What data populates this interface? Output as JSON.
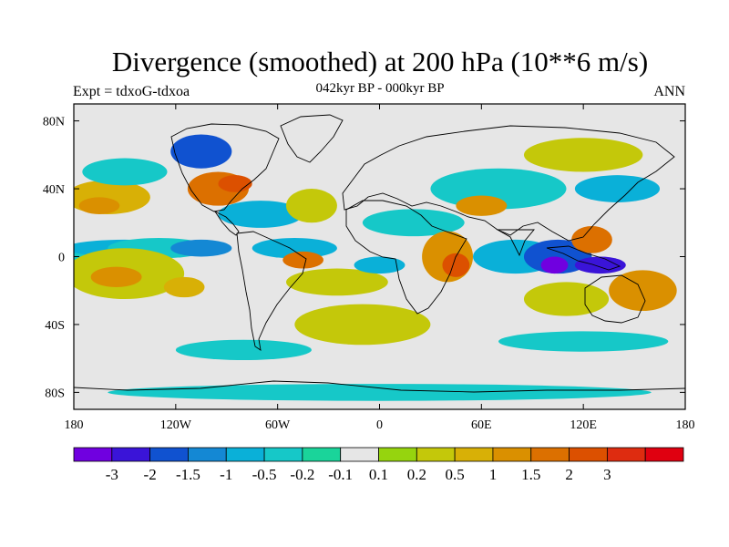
{
  "title": "Divergence (smoothed) at 200 hPa (10**6 m/s)",
  "subtitle": "042kyr BP - 000kyr BP",
  "left_label": "Expt = tdxoG-tdxoa",
  "right_label": "ANN",
  "map": {
    "projection": "cylindrical-equidistant",
    "lon_range": [
      -180,
      180
    ],
    "lat_range": [
      -90,
      90
    ],
    "background_color": "#e6e6e6",
    "x_ticks": [
      {
        "value": -180,
        "label": "180"
      },
      {
        "value": -120,
        "label": "120W"
      },
      {
        "value": -60,
        "label": "60W"
      },
      {
        "value": 0,
        "label": "0"
      },
      {
        "value": 60,
        "label": "60E"
      },
      {
        "value": 120,
        "label": "120E"
      },
      {
        "value": 180,
        "label": "180"
      }
    ],
    "y_ticks": [
      {
        "value": 80,
        "label": "80N"
      },
      {
        "value": 40,
        "label": "40N"
      },
      {
        "value": 0,
        "label": "0"
      },
      {
        "value": -40,
        "label": "40S"
      },
      {
        "value": -80,
        "label": "80S"
      }
    ],
    "fields": [
      {
        "lon": -170,
        "lat": 0,
        "rx": 25,
        "ry": 7,
        "level": 5
      },
      {
        "lon": -150,
        "lat": 5,
        "rx": 35,
        "ry": 5,
        "level": 4
      },
      {
        "lon": -130,
        "lat": 5,
        "rx": 30,
        "ry": 6,
        "level": 5
      },
      {
        "lon": -105,
        "lat": 5,
        "rx": 18,
        "ry": 5,
        "level": 3
      },
      {
        "lon": -150,
        "lat": -10,
        "rx": 35,
        "ry": 15,
        "level": 9
      },
      {
        "lon": -155,
        "lat": -12,
        "rx": 15,
        "ry": 6,
        "level": 11
      },
      {
        "lon": -115,
        "lat": -18,
        "rx": 12,
        "ry": 6,
        "level": 10
      },
      {
        "lon": -160,
        "lat": 35,
        "rx": 25,
        "ry": 10,
        "level": 10
      },
      {
        "lon": -165,
        "lat": 30,
        "rx": 12,
        "ry": 5,
        "level": 11
      },
      {
        "lon": -150,
        "lat": 50,
        "rx": 25,
        "ry": 8,
        "level": 5
      },
      {
        "lon": -105,
        "lat": 62,
        "rx": 18,
        "ry": 10,
        "level": 2
      },
      {
        "lon": -95,
        "lat": 40,
        "rx": 18,
        "ry": 10,
        "level": 12
      },
      {
        "lon": -85,
        "lat": 43,
        "rx": 10,
        "ry": 5,
        "level": 13
      },
      {
        "lon": -70,
        "lat": 25,
        "rx": 25,
        "ry": 8,
        "level": 4
      },
      {
        "lon": -40,
        "lat": 30,
        "rx": 15,
        "ry": 10,
        "level": 9
      },
      {
        "lon": -50,
        "lat": 5,
        "rx": 25,
        "ry": 6,
        "level": 4
      },
      {
        "lon": -45,
        "lat": -2,
        "rx": 12,
        "ry": 5,
        "level": 12
      },
      {
        "lon": -25,
        "lat": -15,
        "rx": 30,
        "ry": 8,
        "level": 9
      },
      {
        "lon": 0,
        "lat": -5,
        "rx": 15,
        "ry": 5,
        "level": 4
      },
      {
        "lon": -10,
        "lat": -40,
        "rx": 40,
        "ry": 12,
        "level": 9
      },
      {
        "lon": 20,
        "lat": 20,
        "rx": 30,
        "ry": 8,
        "level": 5
      },
      {
        "lon": 40,
        "lat": 0,
        "rx": 15,
        "ry": 15,
        "level": 11
      },
      {
        "lon": 45,
        "lat": -5,
        "rx": 8,
        "ry": 7,
        "level": 13
      },
      {
        "lon": 70,
        "lat": 40,
        "rx": 40,
        "ry": 12,
        "level": 5
      },
      {
        "lon": 60,
        "lat": 30,
        "rx": 15,
        "ry": 6,
        "level": 11
      },
      {
        "lon": 80,
        "lat": 0,
        "rx": 25,
        "ry": 10,
        "level": 4
      },
      {
        "lon": 105,
        "lat": 0,
        "rx": 20,
        "ry": 10,
        "level": 2
      },
      {
        "lon": 103,
        "lat": -5,
        "rx": 8,
        "ry": 5,
        "level": 0
      },
      {
        "lon": 130,
        "lat": -5,
        "rx": 15,
        "ry": 5,
        "level": 1
      },
      {
        "lon": 125,
        "lat": 10,
        "rx": 12,
        "ry": 8,
        "level": 12
      },
      {
        "lon": 155,
        "lat": -20,
        "rx": 20,
        "ry": 12,
        "level": 11
      },
      {
        "lon": 110,
        "lat": -25,
        "rx": 25,
        "ry": 10,
        "level": 9
      },
      {
        "lon": 120,
        "lat": -50,
        "rx": 50,
        "ry": 6,
        "level": 5
      },
      {
        "lon": -80,
        "lat": -55,
        "rx": 40,
        "ry": 6,
        "level": 5
      },
      {
        "lon": 0,
        "lat": -80,
        "rx": 160,
        "ry": 5,
        "level": 5
      },
      {
        "lon": 120,
        "lat": 60,
        "rx": 35,
        "ry": 10,
        "level": 9
      },
      {
        "lon": 140,
        "lat": 40,
        "rx": 25,
        "ry": 8,
        "level": 4
      }
    ]
  },
  "colorbar": {
    "colors": [
      "#7000e0",
      "#3a14d8",
      "#1052d0",
      "#1488d4",
      "#0ab0d8",
      "#16c8c8",
      "#1ad49a",
      "#e6e6e6",
      "#96d40e",
      "#c4c80a",
      "#d8b006",
      "#da9000",
      "#dc7000",
      "#dc5000",
      "#de2c10",
      "#e00010"
    ],
    "labels": [
      "-3",
      "-2",
      "-1.5",
      "-1",
      "-0.5",
      "-0.2",
      "-0.1",
      "0.1",
      "0.2",
      "0.5",
      "1",
      "1.5",
      "2",
      "3"
    ]
  }
}
